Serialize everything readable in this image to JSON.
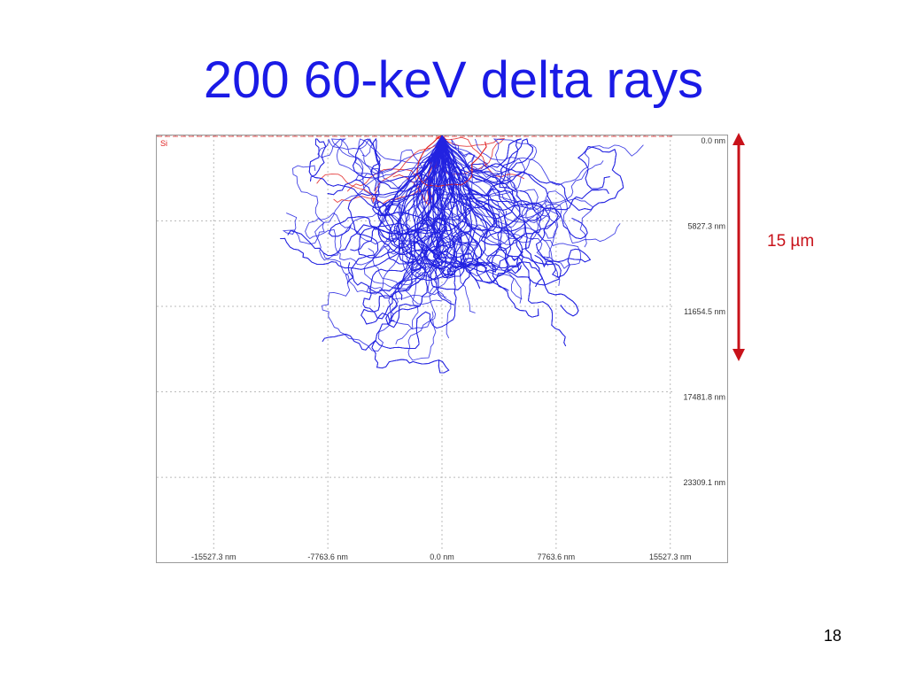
{
  "slide": {
    "title": "200 60-keV delta rays",
    "page_number": "18"
  },
  "scale_bar": {
    "label": "15 µm",
    "color": "#c8121a"
  },
  "chart_data": {
    "type": "scatter",
    "title": "",
    "material_label": "Si",
    "x_tick_labels": [
      "-15527.3 nm",
      "-7763.6 nm",
      "0.0 nm",
      "7763.6 nm",
      "15527.3 nm"
    ],
    "y_tick_labels": [
      "0.0 nm",
      "5827.3 nm",
      "11654.5 nm",
      "17481.8 nm",
      "23309.1 nm"
    ],
    "x_ticks": [
      -15527.3,
      -7763.6,
      0.0,
      7763.6,
      15527.3
    ],
    "y_ticks": [
      0.0,
      5827.3,
      11654.5,
      17481.8,
      23309.1
    ],
    "xlim": [
      -19400,
      19400
    ],
    "ylim": [
      0,
      29100
    ],
    "track_count": 200,
    "source_point": [
      0,
      0
    ],
    "grid": true,
    "colors": {
      "transmitted_tracks": "#2323e0",
      "backscattered_tracks": "#e02020",
      "surface_line": "#e05050",
      "grid": "#bbbbbb"
    }
  }
}
